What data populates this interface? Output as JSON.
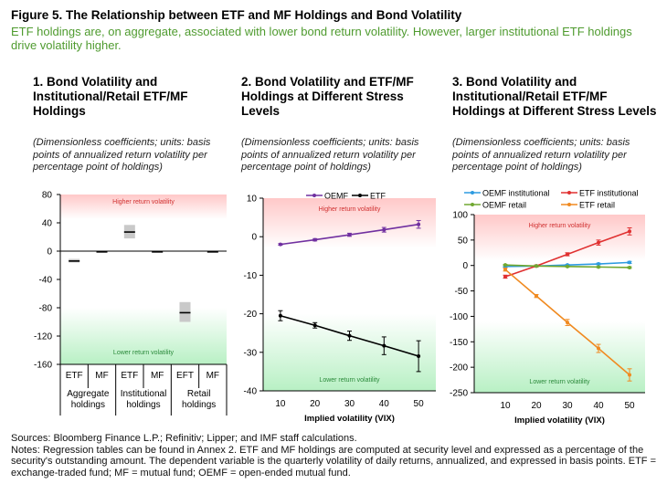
{
  "figure": {
    "title": "Figure 5. The Relationship between ETF and MF Holdings and Bond Volatility",
    "subtitle": "ETF holdings are, on aggregate, associated with lower bond return volatility. However, larger institutional ETF holdings drive volatility higher."
  },
  "panels": [
    {
      "heading": "1. Bond Volatility and Institutional/Retail ETF/MF Holdings",
      "note": "(Dimensionless coefficients; units: basis points of annualized return volatility per percentage point of holdings)"
    },
    {
      "heading": "2. Bond Volatility and ETF/MF Holdings at Different Stress Levels",
      "note": "(Dimensionless coefficients; units: basis points of annualized return volatility per percentage point of holdings)"
    },
    {
      "heading": "3. Bond Volatility and Institutional/Retail ETF/MF Holdings at Different Stress Levels",
      "note": "(Dimensionless coefficients; units: basis points of annualized return volatility per percentage point of holdings)"
    }
  ],
  "footer": {
    "sources": "Sources: Bloomberg Finance L.P.; Refinitiv; Lipper; and IMF staff calculations.",
    "notes": "Notes: Regression tables can be found in Annex 2. ETF and MF holdings are computed at security level and expressed as a percentage of the security's outstanding amount. The dependent variable is the quarterly volatility of daily returns, annualized, and expressed in basis points. ETF = exchange-traded fund; MF = mutual fund; OEMF = open-ended mutual fund."
  },
  "chart_data": [
    {
      "type": "bar",
      "title": "1. Bond Volatility and Institutional/Retail ETF/MF Holdings",
      "ylim": [
        -160,
        80
      ],
      "yticks": [
        80,
        40,
        0,
        -40,
        -80,
        -120,
        -160
      ],
      "top_zone_label": "Higher return volatility",
      "bottom_zone_label": "Lower return volatility",
      "groups": [
        {
          "label": "Aggregate holdings",
          "bars": [
            {
              "label": "ETF",
              "value": -14,
              "low": -16,
              "high": -11
            },
            {
              "label": "MF",
              "value": -1,
              "low": -1.5,
              "high": -0.5
            }
          ]
        },
        {
          "label": "Institutional holdings",
          "bars": [
            {
              "label": "ETF",
              "value": 27,
              "low": 18,
              "high": 37
            },
            {
              "label": "MF",
              "value": -1,
              "low": -1.5,
              "high": -0.5
            }
          ]
        },
        {
          "label": "Retail holdings",
          "bars": [
            {
              "label": "EFT",
              "value": -87,
              "low": -100,
              "high": -72
            },
            {
              "label": "MF",
              "value": -1,
              "low": -1.5,
              "high": -0.5
            }
          ]
        }
      ]
    },
    {
      "type": "line",
      "title": "2. Bond Volatility and ETF/MF Holdings at Different Stress Levels",
      "xlabel": "Implied volatility (VIX)",
      "x": [
        10,
        20,
        30,
        40,
        50
      ],
      "xlim": [
        5,
        55
      ],
      "ylim": [
        -40,
        10
      ],
      "yticks": [
        10,
        0,
        -10,
        -20,
        -30,
        -40
      ],
      "top_zone_label": "Higher return volatility",
      "bottom_zone_label": "Lower return volatility",
      "series": [
        {
          "name": "OEMF",
          "color": "#7030a0",
          "values": [
            -2,
            -0.8,
            0.5,
            1.8,
            3.2
          ],
          "err": [
            0.2,
            0.3,
            0.4,
            0.6,
            1.0
          ]
        },
        {
          "name": "ETF",
          "color": "#000000",
          "values": [
            -20.5,
            -23,
            -25.7,
            -28.3,
            -31
          ],
          "err": [
            1.3,
            0.7,
            1.2,
            2.3,
            4.0
          ]
        }
      ]
    },
    {
      "type": "line",
      "title": "3. Bond Volatility and Institutional/Retail ETF/MF Holdings at Different Stress Levels",
      "xlabel": "Implied volatility (VIX)",
      "x": [
        10,
        20,
        30,
        40,
        50
      ],
      "xlim": [
        0,
        55
      ],
      "ylim": [
        -250,
        100
      ],
      "yticks": [
        100,
        50,
        0,
        -50,
        -100,
        -150,
        -200,
        -250
      ],
      "top_zone_label": "Higher return volatility",
      "bottom_zone_label": "Lower return volatility",
      "series": [
        {
          "name": "OEMF institutional",
          "color": "#2e9be0",
          "values": [
            -2,
            -1,
            1,
            3,
            6
          ],
          "err": [
            1,
            1,
            1,
            1.5,
            2
          ]
        },
        {
          "name": "ETF institutional",
          "color": "#e03030",
          "values": [
            -22,
            -1,
            22,
            45,
            67
          ],
          "err": [
            3,
            2,
            3,
            5,
            7
          ]
        },
        {
          "name": "OEMF retail",
          "color": "#70a830",
          "values": [
            1,
            -1,
            -2,
            -3,
            -4
          ],
          "err": [
            1,
            1,
            1,
            1,
            1.5
          ]
        },
        {
          "name": "ETF retail",
          "color": "#f08a20",
          "values": [
            -8,
            -60,
            -112,
            -163,
            -215
          ],
          "err": [
            3,
            3,
            6,
            8,
            12
          ]
        }
      ]
    }
  ]
}
